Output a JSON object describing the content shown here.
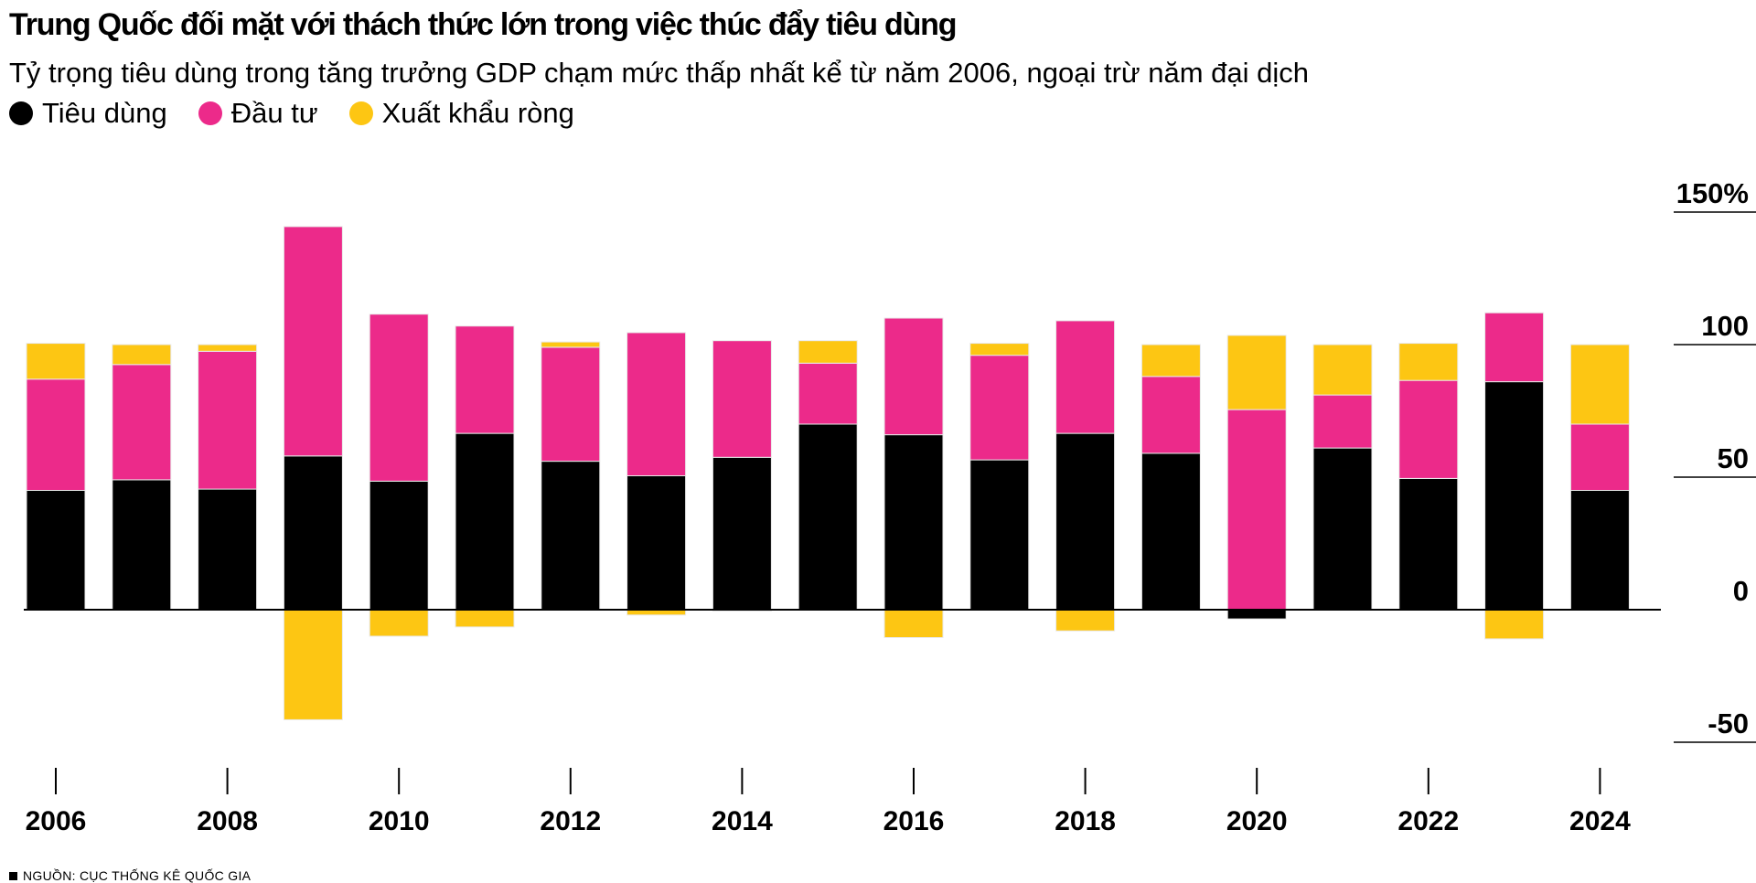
{
  "title": "Trung Quốc đối mặt với thách thức lớn trong việc thúc đẩy tiêu dùng",
  "subtitle": "Tỷ trọng tiêu dùng trong tăng trưởng GDP chạm mức thấp nhất kể từ năm 2006, ngoại trừ năm đại dịch",
  "source": "NGUỒN: CỤC THỐNG KÊ QUỐC GIA",
  "legend": [
    {
      "label": "Tiêu dùng",
      "color": "#000000"
    },
    {
      "label": "Đầu tư",
      "color": "#ec2a8a"
    },
    {
      "label": "Xuất khẩu ròng",
      "color": "#fdc613"
    }
  ],
  "chart_data": {
    "type": "bar",
    "stacked": true,
    "title": "Trung Quốc đối mặt với thách thức lớn trong việc thúc đẩy tiêu dùng",
    "subtitle": "Tỷ trọng tiêu dùng trong tăng trưởng GDP chạm mức thấp nhất kể từ năm 2006, ngoại trừ năm đại dịch",
    "xlabel": "",
    "ylabel": "",
    "ylim": [
      -60,
      160
    ],
    "y_ticks": [
      {
        "value": 150,
        "label": "150%"
      },
      {
        "value": 100,
        "label": "100"
      },
      {
        "value": 50,
        "label": "50"
      },
      {
        "value": 0,
        "label": "0"
      },
      {
        "value": -50,
        "label": "-50"
      }
    ],
    "categories": [
      2006,
      2007,
      2008,
      2009,
      2010,
      2011,
      2012,
      2013,
      2014,
      2015,
      2016,
      2017,
      2018,
      2019,
      2020,
      2021,
      2022,
      2023,
      2024
    ],
    "x_tick_labels": [
      "2006",
      "2008",
      "2010",
      "2012",
      "2014",
      "2016",
      "2018",
      "2020",
      "2022",
      "2024"
    ],
    "series": [
      {
        "name": "Tiêu dùng",
        "color": "#000000",
        "values": [
          45,
          49,
          45.5,
          58,
          48.5,
          66.5,
          56,
          50.5,
          57.5,
          70,
          66,
          56.5,
          66.5,
          59,
          -3.5,
          61,
          49.5,
          86,
          45
        ]
      },
      {
        "name": "Đầu tư",
        "color": "#ec2a8a",
        "values": [
          42,
          43.5,
          52,
          86.5,
          63,
          40.5,
          43,
          54,
          44,
          23,
          44,
          39.5,
          42.5,
          29,
          75.5,
          20,
          37,
          26,
          25
        ]
      },
      {
        "name": "Xuất khẩu ròng",
        "color": "#fdc613",
        "values": [
          13.5,
          7.5,
          2.5,
          -41.5,
          -10,
          -6.5,
          2,
          -2,
          -0.5,
          8.5,
          -10.5,
          4.5,
          -8,
          12,
          28,
          19,
          14,
          -11,
          30
        ]
      }
    ]
  }
}
